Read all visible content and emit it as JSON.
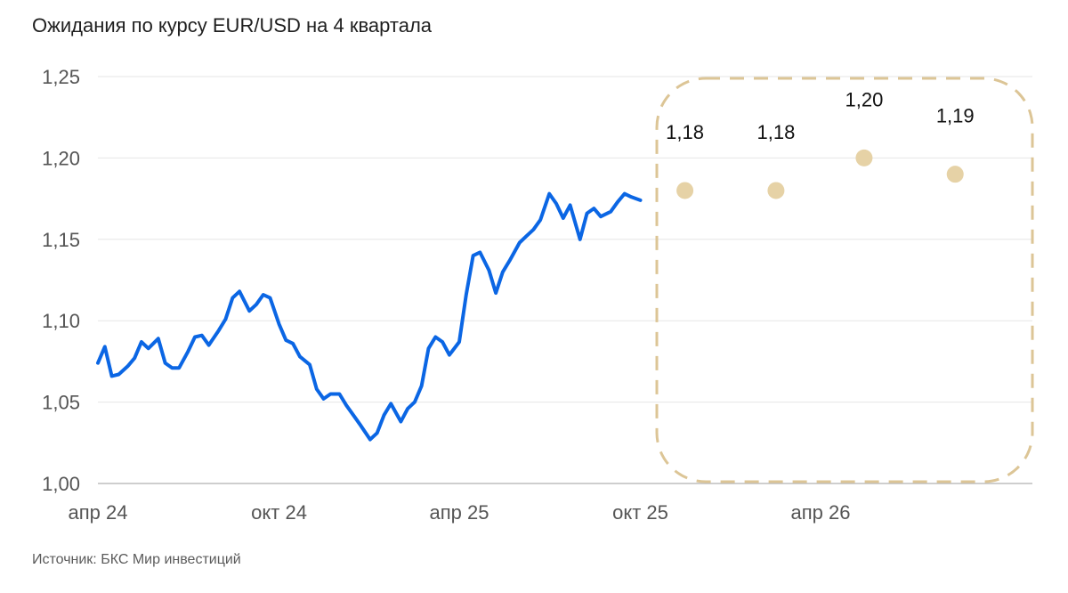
{
  "title": "Ожидания по курсу EUR/USD на 4 квартала",
  "source": "Источник: БКС Мир инвестиций",
  "colors": {
    "history": "#0b66e4",
    "forecast": "#e6d2a6",
    "grid": "#e6e6e6",
    "box": "#dcc596"
  },
  "chart_data": {
    "type": "line",
    "x_ticks": [
      "апр 24",
      "окт 24",
      "апр 25",
      "окт 25",
      "апр 26"
    ],
    "y_ticks": [
      "1,00",
      "1,05",
      "1,10",
      "1,15",
      "1,20",
      "1,25"
    ],
    "ylim": [
      1.0,
      1.25
    ],
    "grid": "horizontal",
    "series": [
      {
        "type": "line",
        "x": [
          "2024-04-01",
          "2024-04-08",
          "2024-04-15",
          "2024-04-22",
          "2024-05-01",
          "2024-05-08",
          "2024-05-15",
          "2024-05-22",
          "2024-06-01",
          "2024-06-08",
          "2024-06-15",
          "2024-06-22",
          "2024-07-01",
          "2024-07-08",
          "2024-07-15",
          "2024-07-22",
          "2024-08-01",
          "2024-08-08",
          "2024-08-15",
          "2024-08-22",
          "2024-09-01",
          "2024-09-08",
          "2024-09-15",
          "2024-09-22",
          "2024-10-01",
          "2024-10-08",
          "2024-10-15",
          "2024-10-22",
          "2024-11-01",
          "2024-11-08",
          "2024-11-15",
          "2024-11-22",
          "2024-12-01",
          "2024-12-08",
          "2024-12-15",
          "2024-12-22",
          "2025-01-01",
          "2025-01-08",
          "2025-01-15",
          "2025-01-22",
          "2025-02-01",
          "2025-02-08",
          "2025-02-15",
          "2025-02-22",
          "2025-03-01",
          "2025-03-08",
          "2025-03-15",
          "2025-03-22",
          "2025-04-01",
          "2025-04-08",
          "2025-04-15",
          "2025-04-22",
          "2025-05-01",
          "2025-05-08",
          "2025-05-15",
          "2025-05-22",
          "2025-06-01",
          "2025-06-08",
          "2025-06-15",
          "2025-06-22",
          "2025-07-01",
          "2025-07-08",
          "2025-07-15",
          "2025-07-22",
          "2025-08-01",
          "2025-08-08",
          "2025-08-15",
          "2025-08-22",
          "2025-09-01",
          "2025-09-08",
          "2025-09-15",
          "2025-09-22",
          "2025-10-01"
        ],
        "values": [
          1.074,
          1.084,
          1.066,
          1.067,
          1.072,
          1.077,
          1.087,
          1.083,
          1.089,
          1.074,
          1.071,
          1.071,
          1.081,
          1.09,
          1.091,
          1.085,
          1.094,
          1.101,
          1.114,
          1.118,
          1.106,
          1.11,
          1.116,
          1.114,
          1.098,
          1.088,
          1.086,
          1.078,
          1.073,
          1.058,
          1.052,
          1.055,
          1.055,
          1.048,
          1.042,
          1.036,
          1.027,
          1.031,
          1.042,
          1.049,
          1.038,
          1.046,
          1.05,
          1.06,
          1.083,
          1.09,
          1.087,
          1.079,
          1.087,
          1.116,
          1.14,
          1.142,
          1.131,
          1.117,
          1.13,
          1.137,
          1.148,
          1.152,
          1.156,
          1.162,
          1.178,
          1.172,
          1.163,
          1.171,
          1.15,
          1.166,
          1.169,
          1.164,
          1.167,
          1.173,
          1.178,
          1.176,
          1.174
        ]
      },
      {
        "type": "scatter",
        "x": [
          "2025-11-15",
          "2026-02-15",
          "2026-05-15",
          "2026-08-15"
        ],
        "values": [
          1.18,
          1.18,
          1.2,
          1.19
        ],
        "labels": [
          "1,18",
          "1,18",
          "1,20",
          "1,19"
        ]
      }
    ]
  }
}
